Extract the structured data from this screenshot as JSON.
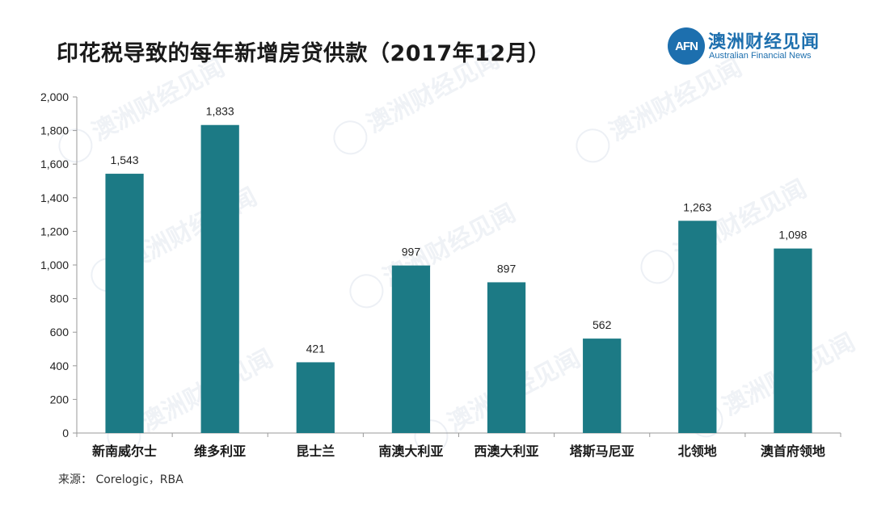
{
  "title": "印花税导致的每年新增房贷供款（2017年12月）",
  "logo": {
    "badge": "AFN",
    "name_cn": "澳洲财经见闻",
    "name_en": "Australian Financial News"
  },
  "watermark": "澳洲财经见闻",
  "source": "来源： Corelogic，RBA",
  "colors": {
    "bar": "#1c7a85",
    "axis": "#9a9a9a",
    "accent": "#1d6fae"
  },
  "chart_data": {
    "type": "bar",
    "categories": [
      "新南威尔士",
      "维多利亚",
      "昆士兰",
      "南澳大利亚",
      "西澳大利亚",
      "塔斯马尼亚",
      "北领地",
      "澳首府领地"
    ],
    "values": [
      1543,
      1833,
      421,
      997,
      897,
      562,
      1263,
      1098
    ],
    "value_labels": [
      "1,543",
      "1,833",
      "421",
      "997",
      "897",
      "562",
      "1,263",
      "1,098"
    ],
    "ylim": [
      0,
      2000
    ],
    "yticks": [
      0,
      200,
      400,
      600,
      800,
      1000,
      1200,
      1400,
      1600,
      1800,
      2000
    ],
    "ytick_labels": [
      "0",
      "200",
      "400",
      "600",
      "800",
      "1,000",
      "1,200",
      "1,400",
      "1,600",
      "1,800",
      "2,000"
    ],
    "grid": false,
    "legend": "none"
  }
}
